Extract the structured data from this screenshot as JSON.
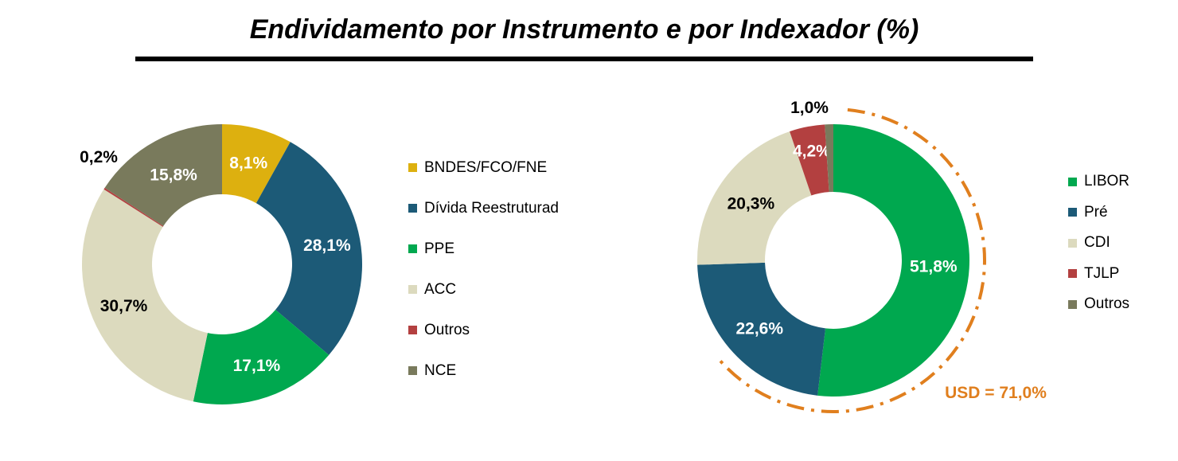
{
  "title": "Endividamento por Instrumento e por Indexador (%)",
  "chart_data": [
    {
      "type": "pie",
      "name": "instrumento",
      "categories": [
        "BNDES/FCO/FNE",
        "Dívida Reestruturad",
        "PPE",
        "ACC",
        "Outros",
        "NCE"
      ],
      "values": [
        8.1,
        28.1,
        17.1,
        30.7,
        0.2,
        15.8
      ],
      "labels": [
        "8,1%",
        "28,1%",
        "17,1%",
        "30,7%",
        "0,2%",
        "15,8%"
      ],
      "colors": [
        "#DDB00F",
        "#1C5A77",
        "#00A84F",
        "#DCDABE",
        "#B34040",
        "#797A5C"
      ],
      "donut": true,
      "legend": "right"
    },
    {
      "type": "pie",
      "name": "indexador",
      "categories": [
        "LIBOR",
        "Pré",
        "CDI",
        "TJLP",
        "Outros"
      ],
      "values": [
        51.8,
        22.6,
        20.3,
        4.2,
        1.0
      ],
      "labels": [
        "51,8%",
        "22,6%",
        "20,3%",
        "4,2%",
        "1,0%"
      ],
      "colors": [
        "#00A84F",
        "#1C5A77",
        "#DCDABE",
        "#B34040",
        "#797A5C"
      ],
      "donut": true,
      "legend": "right",
      "annotation": "USD = 71,0%",
      "annotation_color": "#E07F1E"
    }
  ]
}
